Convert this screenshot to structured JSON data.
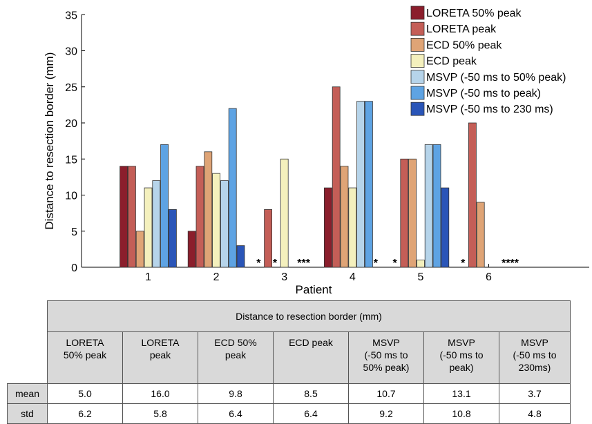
{
  "chart_data": {
    "type": "bar",
    "categories": [
      "1",
      "2",
      "3",
      "4",
      "5",
      "6"
    ],
    "xlabel": "Patient",
    "ylabel": "Distance to resection border (mm)",
    "ylim": [
      0,
      35
    ],
    "yticks": [
      0,
      5,
      10,
      15,
      20,
      25,
      30,
      35
    ],
    "legend_position": "top-right",
    "series": [
      {
        "name": "LORETA 50% peak",
        "color": "#8b1e2c",
        "values": [
          14,
          5,
          null,
          11,
          null,
          null
        ]
      },
      {
        "name": "LORETA peak",
        "color": "#c45e57",
        "values": [
          14,
          14,
          8,
          25,
          15,
          20
        ]
      },
      {
        "name": "ECD 50% peak",
        "color": "#dfa476",
        "values": [
          5,
          16,
          null,
          14,
          15,
          9
        ]
      },
      {
        "name": "ECD peak",
        "color": "#f4f0bd",
        "values": [
          11,
          13,
          15,
          11,
          1,
          null
        ]
      },
      {
        "name": "MSVP (-50 ms to 50% peak)",
        "color": "#b6d4ea",
        "values": [
          12,
          12,
          null,
          23,
          17,
          null
        ]
      },
      {
        "name": "MSVP (-50 ms to peak)",
        "color": "#5ea3e3",
        "values": [
          17,
          22,
          null,
          23,
          17,
          null
        ]
      },
      {
        "name": "MSVP (-50 ms to 230 ms)",
        "color": "#2a55b8",
        "values": [
          8,
          3,
          null,
          null,
          11,
          null
        ]
      }
    ],
    "missing_marker": "*",
    "annotations": [
      {
        "category": "3",
        "text": "*",
        "series": 0
      },
      {
        "category": "3",
        "text": "*",
        "series": 2
      },
      {
        "category": "3",
        "text": "***",
        "series": 5
      },
      {
        "category": "4",
        "text": "*",
        "series": 6
      },
      {
        "category": "5",
        "text": "*",
        "series": 0
      },
      {
        "category": "6",
        "text": "*",
        "series": 0
      },
      {
        "category": "6",
        "text": "****",
        "series": 5
      }
    ]
  },
  "table": {
    "title": "Distance to resection border (mm)",
    "columns": [
      [
        "LORETA",
        "50% peak"
      ],
      [
        "LORETA",
        "peak"
      ],
      [
        "ECD 50%",
        "peak"
      ],
      [
        "ECD peak"
      ],
      [
        "MSVP",
        "(-50 ms to",
        "50% peak)"
      ],
      [
        "MSVP",
        "(-50 ms to",
        "peak)"
      ],
      [
        "MSVP",
        "(-50 ms to",
        "230ms)"
      ]
    ],
    "rows": [
      {
        "label": "mean",
        "values": [
          "5.0",
          "16.0",
          "9.8",
          "8.5",
          "10.7",
          "13.1",
          "3.7"
        ]
      },
      {
        "label": "std",
        "values": [
          "6.2",
          "5.8",
          "6.4",
          "6.4",
          "9.2",
          "10.8",
          "4.8"
        ]
      }
    ]
  }
}
